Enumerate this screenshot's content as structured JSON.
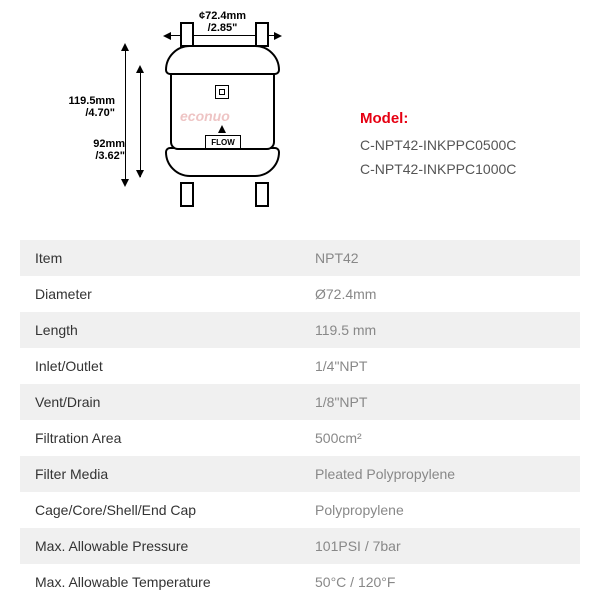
{
  "diagram": {
    "width_dim": "¢72.4mm\n/2.85\"",
    "height_dim": "119.5mm\n/4.70\"",
    "body_dim": "92mm\n/3.62\"",
    "flow_label": "FLOW",
    "watermark": "econuo"
  },
  "model": {
    "label": "Model:",
    "numbers": [
      "C-NPT42-INKPPC0500C",
      "C-NPT42-INKPPC1000C"
    ]
  },
  "specs": [
    {
      "label": "Item",
      "value": "NPT42"
    },
    {
      "label": "Diameter",
      "value": "Ø72.4mm"
    },
    {
      "label": "Length",
      "value": "119.5 mm"
    },
    {
      "label": "Inlet/Outlet",
      "value": "1/4\"NPT"
    },
    {
      "label": "Vent/Drain",
      "value": "1/8\"NPT"
    },
    {
      "label": "Filtration Area",
      "value": "500cm²"
    },
    {
      "label": "Filter Media",
      "value": "Pleated Polypropylene"
    },
    {
      "label": "Cage/Core/Shell/End Cap",
      "value": "Polypropylene"
    },
    {
      "label": "Max. Allowable Pressure",
      "value": "101PSI / 7bar"
    },
    {
      "label": "Max. Allowable Temperature",
      "value": "50°C / 120°F"
    }
  ]
}
